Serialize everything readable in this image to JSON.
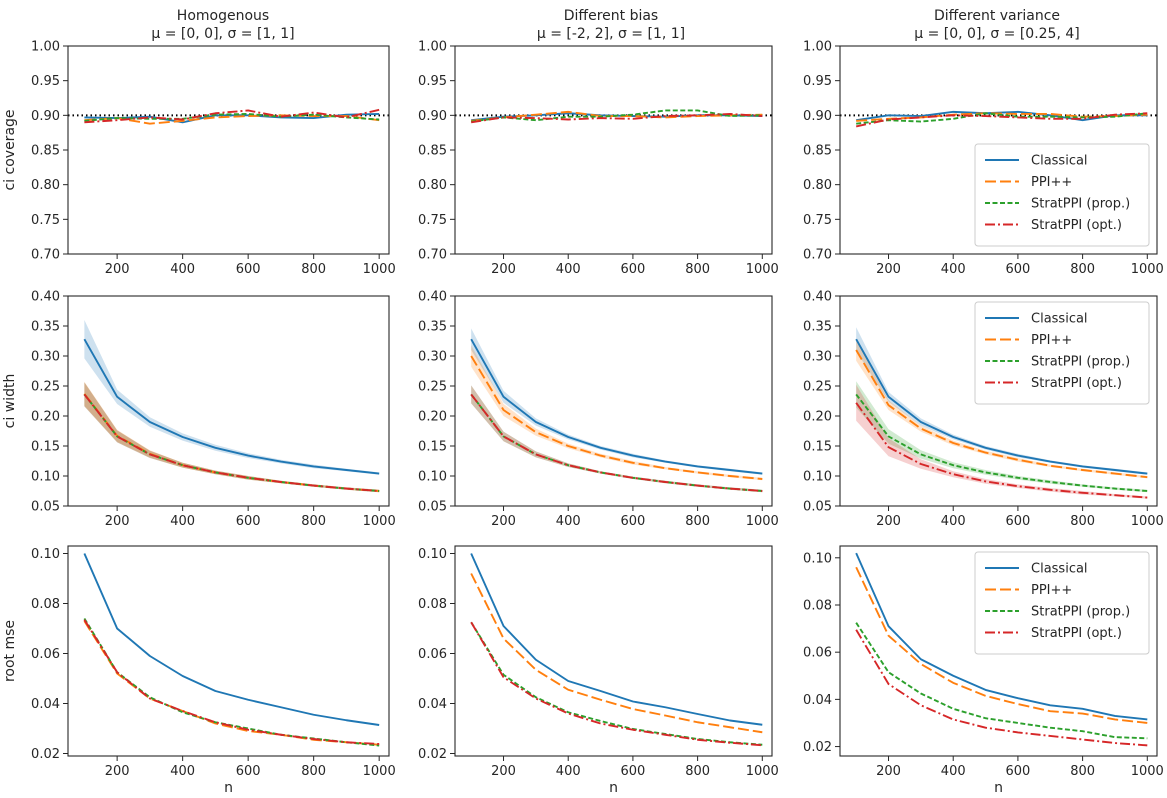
{
  "colors": {
    "Classical": "#1f77b4",
    "PPI++": "#ff7f0e",
    "StratPPI (prop.)": "#2ca02c",
    "StratPPI (opt.)": "#d62728",
    "reference": "#000000"
  },
  "columns": [
    {
      "title": "Homogenous",
      "subtitle": "μ = [0, 0],  σ = [1, 1]"
    },
    {
      "title": "Different bias",
      "subtitle": "μ = [-2, 2],  σ = [1, 1]"
    },
    {
      "title": "Different variance",
      "subtitle": "μ = [0, 0],  σ = [0.25, 4]"
    }
  ],
  "chart_data": [
    {
      "id": "p00",
      "row": 0,
      "col": 0,
      "type": "line",
      "xlabel": "",
      "ylabel": "ci coverage",
      "ylim": [
        0.7,
        1.0
      ],
      "yticks": [
        "0.70",
        "0.75",
        "0.80",
        "0.85",
        "0.90",
        "0.95",
        "1.00"
      ],
      "xticks": [
        "200",
        "400",
        "600",
        "800",
        "1000"
      ],
      "reference_line": 0.9,
      "legend": null,
      "x": [
        100,
        200,
        300,
        400,
        500,
        600,
        700,
        800,
        900,
        1000
      ],
      "series": [
        {
          "name": "Classical",
          "values": [
            0.897,
            0.896,
            0.898,
            0.89,
            0.9,
            0.9,
            0.897,
            0.896,
            0.901,
            0.902
          ]
        },
        {
          "name": "PPI++",
          "values": [
            0.893,
            0.896,
            0.888,
            0.892,
            0.897,
            0.899,
            0.9,
            0.899,
            0.899,
            0.893
          ]
        },
        {
          "name": "StratPPI (prop.)",
          "values": [
            0.892,
            0.896,
            0.895,
            0.895,
            0.901,
            0.902,
            0.898,
            0.901,
            0.897,
            0.894
          ]
        },
        {
          "name": "StratPPI (opt.)",
          "values": [
            0.89,
            0.893,
            0.897,
            0.894,
            0.903,
            0.907,
            0.898,
            0.904,
            0.897,
            0.908
          ]
        }
      ]
    },
    {
      "id": "p01",
      "row": 0,
      "col": 1,
      "type": "line",
      "xlabel": "",
      "ylabel": "",
      "ylim": [
        0.7,
        1.0
      ],
      "yticks": [
        "0.70",
        "0.75",
        "0.80",
        "0.85",
        "0.90",
        "0.95",
        "1.00"
      ],
      "xticks": [
        "200",
        "400",
        "600",
        "800",
        "1000"
      ],
      "reference_line": 0.9,
      "legend": null,
      "x": [
        100,
        200,
        300,
        400,
        500,
        600,
        700,
        800,
        900,
        1000
      ],
      "series": [
        {
          "name": "Classical",
          "values": [
            0.893,
            0.898,
            0.9,
            0.903,
            0.9,
            0.899,
            0.898,
            0.9,
            0.9,
            0.899
          ]
        },
        {
          "name": "PPI++",
          "values": [
            0.892,
            0.897,
            0.901,
            0.905,
            0.899,
            0.899,
            0.897,
            0.899,
            0.9,
            0.901
          ]
        },
        {
          "name": "StratPPI (prop.)",
          "values": [
            0.891,
            0.897,
            0.893,
            0.898,
            0.898,
            0.901,
            0.907,
            0.907,
            0.899,
            0.9
          ]
        },
        {
          "name": "StratPPI (opt.)",
          "values": [
            0.89,
            0.897,
            0.896,
            0.894,
            0.896,
            0.895,
            0.899,
            0.9,
            0.902,
            0.899
          ]
        }
      ]
    },
    {
      "id": "p02",
      "row": 0,
      "col": 2,
      "type": "line",
      "xlabel": "",
      "ylabel": "",
      "ylim": [
        0.7,
        1.0
      ],
      "yticks": [
        "0.70",
        "0.75",
        "0.80",
        "0.85",
        "0.90",
        "0.95",
        "1.00"
      ],
      "xticks": [
        "200",
        "400",
        "600",
        "800",
        "1000"
      ],
      "reference_line": 0.9,
      "legend": "lower-right",
      "x": [
        100,
        200,
        300,
        400,
        500,
        600,
        700,
        800,
        900,
        1000
      ],
      "series": [
        {
          "name": "Classical",
          "values": [
            0.893,
            0.9,
            0.899,
            0.905,
            0.903,
            0.905,
            0.9,
            0.893,
            0.9,
            0.9
          ]
        },
        {
          "name": "PPI++",
          "values": [
            0.892,
            0.895,
            0.897,
            0.901,
            0.903,
            0.902,
            0.902,
            0.898,
            0.899,
            0.901
          ]
        },
        {
          "name": "StratPPI (prop.)",
          "values": [
            0.888,
            0.893,
            0.891,
            0.895,
            0.903,
            0.898,
            0.898,
            0.897,
            0.898,
            0.903
          ]
        },
        {
          "name": "StratPPI (opt.)",
          "values": [
            0.884,
            0.894,
            0.897,
            0.9,
            0.899,
            0.897,
            0.895,
            0.895,
            0.901,
            0.903
          ]
        }
      ]
    },
    {
      "id": "p10",
      "row": 1,
      "col": 0,
      "type": "line",
      "xlabel": "",
      "ylabel": "ci width",
      "ylim": [
        0.05,
        0.4
      ],
      "yticks": [
        "0.05",
        "0.10",
        "0.15",
        "0.20",
        "0.25",
        "0.30",
        "0.35",
        "0.40"
      ],
      "xticks": [
        "200",
        "400",
        "600",
        "800",
        "1000"
      ],
      "legend": null,
      "x": [
        100,
        200,
        300,
        400,
        500,
        600,
        700,
        800,
        900,
        1000
      ],
      "series": [
        {
          "name": "Classical",
          "values": [
            0.328,
            0.232,
            0.19,
            0.165,
            0.147,
            0.134,
            0.124,
            0.116,
            0.11,
            0.104
          ],
          "band": [
            0.032,
            0.012,
            0.008,
            0.006,
            0.005,
            0.004,
            0.003,
            0.003,
            0.002,
            0.002
          ]
        },
        {
          "name": "PPI++",
          "values": [
            0.237,
            0.167,
            0.137,
            0.118,
            0.106,
            0.097,
            0.09,
            0.084,
            0.079,
            0.075
          ],
          "band": [
            0.02,
            0.01,
            0.006,
            0.004,
            0.003,
            0.003,
            0.002,
            0.002,
            0.002,
            0.002
          ]
        },
        {
          "name": "StratPPI (prop.)",
          "values": [
            0.236,
            0.166,
            0.136,
            0.118,
            0.106,
            0.097,
            0.09,
            0.084,
            0.079,
            0.075
          ],
          "band": [
            0.02,
            0.01,
            0.006,
            0.004,
            0.003,
            0.003,
            0.002,
            0.002,
            0.002,
            0.002
          ]
        },
        {
          "name": "StratPPI (opt.)",
          "values": [
            0.236,
            0.166,
            0.136,
            0.118,
            0.106,
            0.097,
            0.09,
            0.084,
            0.079,
            0.075
          ],
          "band": [
            0.02,
            0.01,
            0.006,
            0.004,
            0.003,
            0.003,
            0.002,
            0.002,
            0.002,
            0.002
          ]
        }
      ]
    },
    {
      "id": "p11",
      "row": 1,
      "col": 1,
      "type": "line",
      "xlabel": "",
      "ylabel": "",
      "ylim": [
        0.05,
        0.4
      ],
      "yticks": [
        "0.05",
        "0.10",
        "0.15",
        "0.20",
        "0.25",
        "0.30",
        "0.35",
        "0.40"
      ],
      "xticks": [
        "200",
        "400",
        "600",
        "800",
        "1000"
      ],
      "legend": null,
      "x": [
        100,
        200,
        300,
        400,
        500,
        600,
        700,
        800,
        900,
        1000
      ],
      "series": [
        {
          "name": "Classical",
          "values": [
            0.328,
            0.232,
            0.19,
            0.165,
            0.147,
            0.134,
            0.124,
            0.116,
            0.11,
            0.104
          ],
          "band": [
            0.018,
            0.01,
            0.006,
            0.004,
            0.003,
            0.003,
            0.002,
            0.002,
            0.002,
            0.002
          ]
        },
        {
          "name": "PPI++",
          "values": [
            0.3,
            0.21,
            0.173,
            0.15,
            0.134,
            0.122,
            0.113,
            0.106,
            0.1,
            0.095
          ],
          "band": [
            0.018,
            0.01,
            0.006,
            0.004,
            0.003,
            0.003,
            0.002,
            0.002,
            0.002,
            0.002
          ]
        },
        {
          "name": "StratPPI (prop.)",
          "values": [
            0.236,
            0.166,
            0.136,
            0.118,
            0.106,
            0.097,
            0.09,
            0.084,
            0.079,
            0.075
          ],
          "band": [
            0.015,
            0.008,
            0.005,
            0.003,
            0.002,
            0.002,
            0.002,
            0.002,
            0.002,
            0.002
          ]
        },
        {
          "name": "StratPPI (opt.)",
          "values": [
            0.236,
            0.166,
            0.136,
            0.118,
            0.106,
            0.097,
            0.09,
            0.084,
            0.079,
            0.075
          ],
          "band": [
            0.015,
            0.008,
            0.005,
            0.003,
            0.002,
            0.002,
            0.002,
            0.002,
            0.002,
            0.002
          ]
        }
      ]
    },
    {
      "id": "p12",
      "row": 1,
      "col": 2,
      "type": "line",
      "xlabel": "",
      "ylabel": "",
      "ylim": [
        0.05,
        0.4
      ],
      "yticks": [
        "0.05",
        "0.10",
        "0.15",
        "0.20",
        "0.25",
        "0.30",
        "0.35",
        "0.40"
      ],
      "xticks": [
        "200",
        "400",
        "600",
        "800",
        "1000"
      ],
      "legend": "upper-right",
      "x": [
        100,
        200,
        300,
        400,
        500,
        600,
        700,
        800,
        900,
        1000
      ],
      "series": [
        {
          "name": "Classical",
          "values": [
            0.328,
            0.232,
            0.19,
            0.165,
            0.147,
            0.134,
            0.124,
            0.116,
            0.11,
            0.104
          ],
          "band": [
            0.02,
            0.008,
            0.006,
            0.004,
            0.003,
            0.003,
            0.002,
            0.002,
            0.002,
            0.002
          ]
        },
        {
          "name": "PPI++",
          "values": [
            0.31,
            0.218,
            0.179,
            0.155,
            0.139,
            0.127,
            0.117,
            0.11,
            0.104,
            0.098
          ],
          "band": [
            0.018,
            0.008,
            0.005,
            0.004,
            0.003,
            0.003,
            0.002,
            0.002,
            0.002,
            0.002
          ]
        },
        {
          "name": "StratPPI (prop.)",
          "values": [
            0.236,
            0.166,
            0.136,
            0.118,
            0.106,
            0.097,
            0.09,
            0.084,
            0.079,
            0.075
          ],
          "band": [
            0.022,
            0.012,
            0.007,
            0.005,
            0.004,
            0.003,
            0.003,
            0.002,
            0.002,
            0.002
          ]
        },
        {
          "name": "StratPPI (opt.)",
          "values": [
            0.222,
            0.148,
            0.12,
            0.103,
            0.091,
            0.083,
            0.077,
            0.072,
            0.068,
            0.064
          ],
          "band": [
            0.03,
            0.015,
            0.008,
            0.005,
            0.004,
            0.003,
            0.003,
            0.003,
            0.002,
            0.002
          ]
        }
      ]
    },
    {
      "id": "p20",
      "row": 2,
      "col": 0,
      "type": "line",
      "xlabel": "n",
      "ylabel": "root mse",
      "ylim": [
        0.019,
        0.103
      ],
      "yticks": [
        "0.02",
        "0.04",
        "0.06",
        "0.08",
        "0.10"
      ],
      "xticks": [
        "200",
        "400",
        "600",
        "800",
        "1000"
      ],
      "legend": null,
      "x": [
        100,
        200,
        300,
        400,
        500,
        600,
        700,
        800,
        900,
        1000
      ],
      "series": [
        {
          "name": "Classical",
          "values": [
            0.1,
            0.07,
            0.059,
            0.051,
            0.045,
            0.0415,
            0.0385,
            0.0355,
            0.0333,
            0.0314
          ]
        },
        {
          "name": "PPI++",
          "values": [
            0.073,
            0.052,
            0.042,
            0.037,
            0.032,
            0.029,
            0.0275,
            0.0255,
            0.0245,
            0.0235
          ]
        },
        {
          "name": "StratPPI (prop.)",
          "values": [
            0.074,
            0.0525,
            0.0425,
            0.0365,
            0.0325,
            0.03,
            0.0275,
            0.026,
            0.0245,
            0.0232
          ]
        },
        {
          "name": "StratPPI (opt.)",
          "values": [
            0.0735,
            0.0525,
            0.042,
            0.037,
            0.0325,
            0.0295,
            0.0275,
            0.0258,
            0.0245,
            0.0238
          ]
        }
      ]
    },
    {
      "id": "p21",
      "row": 2,
      "col": 1,
      "type": "line",
      "xlabel": "n",
      "ylabel": "",
      "ylim": [
        0.019,
        0.103
      ],
      "yticks": [
        "0.02",
        "0.04",
        "0.06",
        "0.08",
        "0.10"
      ],
      "xticks": [
        "200",
        "400",
        "600",
        "800",
        "1000"
      ],
      "legend": null,
      "x": [
        100,
        200,
        300,
        400,
        500,
        600,
        700,
        800,
        900,
        1000
      ],
      "series": [
        {
          "name": "Classical",
          "values": [
            0.1,
            0.071,
            0.0575,
            0.049,
            0.045,
            0.0408,
            0.0385,
            0.0358,
            0.0332,
            0.0315
          ]
        },
        {
          "name": "PPI++",
          "values": [
            0.092,
            0.066,
            0.0535,
            0.0455,
            0.0415,
            0.0378,
            0.0352,
            0.0325,
            0.0305,
            0.0285
          ]
        },
        {
          "name": "StratPPI (prop.)",
          "values": [
            0.0725,
            0.0515,
            0.0425,
            0.0365,
            0.033,
            0.0298,
            0.0278,
            0.0258,
            0.0245,
            0.0235
          ]
        },
        {
          "name": "StratPPI (opt.)",
          "values": [
            0.0725,
            0.0505,
            0.042,
            0.036,
            0.032,
            0.0295,
            0.0275,
            0.0255,
            0.0243,
            0.0233
          ]
        }
      ]
    },
    {
      "id": "p22",
      "row": 2,
      "col": 2,
      "type": "line",
      "xlabel": "n",
      "ylabel": "",
      "ylim": [
        0.016,
        0.105
      ],
      "yticks": [
        "0.02",
        "0.04",
        "0.06",
        "0.08",
        "0.10"
      ],
      "xticks": [
        "200",
        "400",
        "600",
        "800",
        "1000"
      ],
      "legend": "upper-right",
      "x": [
        100,
        200,
        300,
        400,
        500,
        600,
        700,
        800,
        900,
        1000
      ],
      "series": [
        {
          "name": "Classical",
          "values": [
            0.102,
            0.071,
            0.057,
            0.05,
            0.044,
            0.0405,
            0.0375,
            0.036,
            0.033,
            0.0315
          ]
        },
        {
          "name": "PPI++",
          "values": [
            0.096,
            0.067,
            0.055,
            0.047,
            0.0415,
            0.038,
            0.035,
            0.034,
            0.0315,
            0.03
          ]
        },
        {
          "name": "StratPPI (prop.)",
          "values": [
            0.0725,
            0.0515,
            0.0425,
            0.036,
            0.032,
            0.03,
            0.028,
            0.0265,
            0.024,
            0.0235
          ]
        },
        {
          "name": "StratPPI (opt.)",
          "values": [
            0.0695,
            0.0465,
            0.0375,
            0.0315,
            0.028,
            0.026,
            0.0245,
            0.023,
            0.0215,
            0.0205
          ]
        }
      ]
    }
  ]
}
